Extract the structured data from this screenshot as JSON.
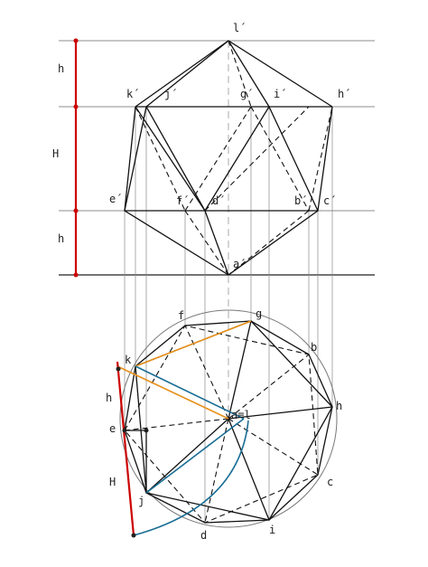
{
  "elevation": {
    "labels": {
      "l": "l´",
      "k": "k´",
      "j": "j´",
      "g": "g´",
      "i": "i´",
      "h": "h´",
      "e": "e´",
      "f": "f´",
      "d": "d´",
      "b": "b´",
      "c": "c´",
      "a": "a´"
    },
    "dimensions": {
      "top": "h",
      "middle": "H",
      "bottom": "h"
    }
  },
  "plan": {
    "labels": {
      "f": "f",
      "g": "g",
      "b": "b",
      "k": "k",
      "h": "h",
      "e": "e",
      "al": "a≡l",
      "c": "c",
      "j": "j",
      "i": "i",
      "d": "d"
    },
    "dimensions": {
      "small": "h",
      "large": "H"
    }
  }
}
